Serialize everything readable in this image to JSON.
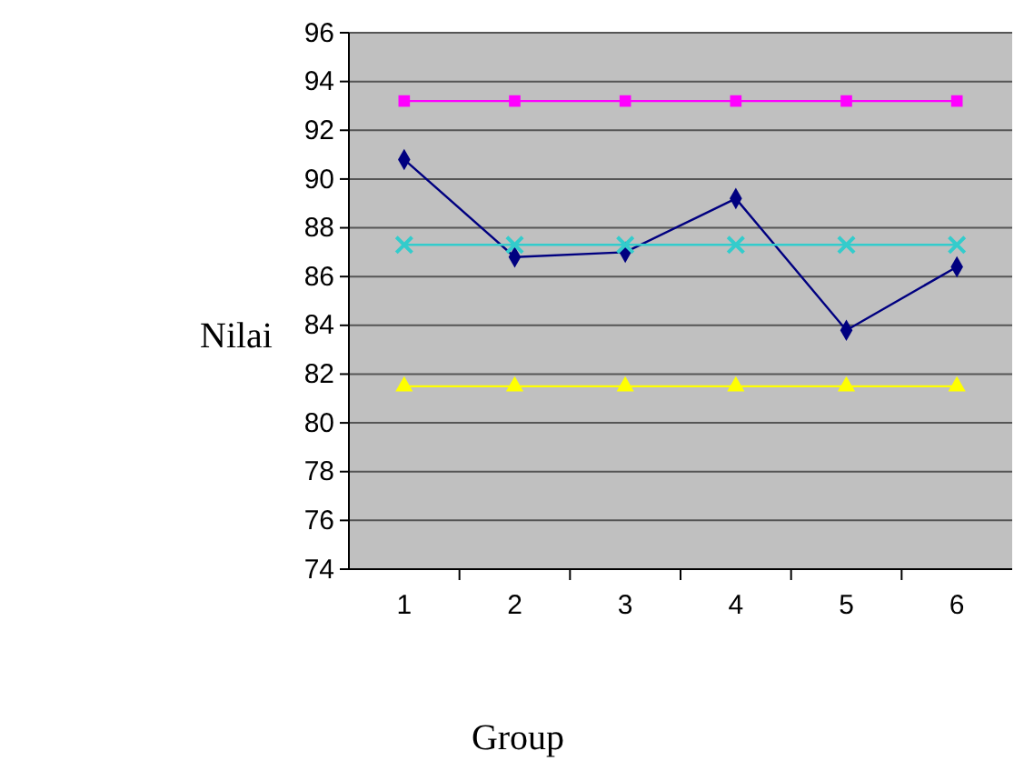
{
  "chart_data": {
    "type": "line",
    "xlabel": "Group",
    "ylabel": "Nilai",
    "categories": [
      "1",
      "2",
      "3",
      "4",
      "5",
      "6"
    ],
    "ylim": [
      74,
      96
    ],
    "yticks": [
      74,
      76,
      78,
      80,
      82,
      84,
      86,
      88,
      90,
      92,
      94,
      96
    ],
    "grid": "y",
    "series": [
      {
        "color": "#ff00ff",
        "marker": "square",
        "values": [
          93.2,
          93.2,
          93.2,
          93.2,
          93.2,
          93.2
        ]
      },
      {
        "color": "#000080",
        "marker": "diamond",
        "values": [
          90.8,
          86.8,
          87.0,
          89.2,
          83.8,
          86.4
        ]
      },
      {
        "color": "#33cccc",
        "marker": "cross",
        "values": [
          87.3,
          87.3,
          87.3,
          87.3,
          87.3,
          87.3
        ]
      },
      {
        "color": "#ffff00",
        "marker": "triangle",
        "values": [
          81.5,
          81.5,
          81.5,
          81.5,
          81.5,
          81.5
        ]
      }
    ]
  }
}
